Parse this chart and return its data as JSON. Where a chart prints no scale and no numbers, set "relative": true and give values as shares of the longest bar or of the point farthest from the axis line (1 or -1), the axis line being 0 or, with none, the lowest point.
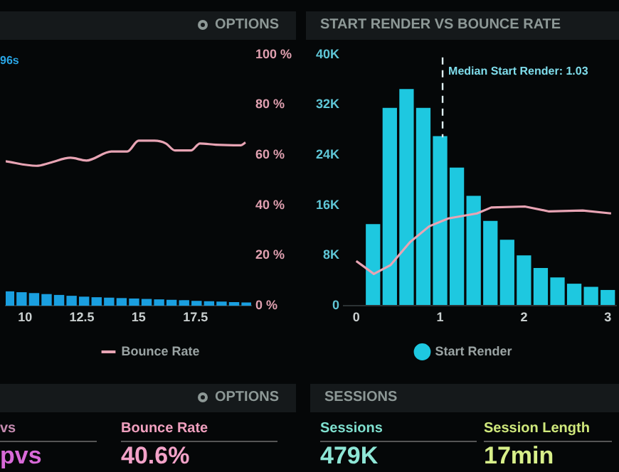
{
  "chart_data": [
    {
      "type": "bar",
      "relative": true,
      "x": [
        9.3,
        9.85,
        10.4,
        10.95,
        11.5,
        12.05,
        12.6,
        13.15,
        13.7,
        14.25,
        14.8,
        15.35,
        15.9,
        16.45,
        17.0,
        17.55,
        18.1,
        18.65,
        19.2,
        19.75
      ],
      "xlim": [
        9.15,
        19.95
      ],
      "xticks": [
        10,
        12.5,
        15,
        17.5
      ],
      "tick_labels": "x",
      "series": [
        {
          "type": "bar",
          "color": "#1a9fe0",
          "values": [
            1,
            0.94,
            0.88,
            0.81,
            0.75,
            0.69,
            0.63,
            0.59,
            0.56,
            0.53,
            0.5,
            0.47,
            0.44,
            0.41,
            0.38,
            0.34,
            0.31,
            0.28,
            0.25,
            0.22
          ]
        }
      ]
    },
    {
      "type": "line",
      "xlim": [
        9.15,
        19.95
      ],
      "xticks": [
        10,
        12.5,
        15,
        17.5
      ],
      "tick_labels": "y",
      "ylim": [
        0,
        100
      ],
      "yticks": [
        {
          "value": 0,
          "label": "0 %"
        },
        {
          "value": 20,
          "label": "20 %"
        },
        {
          "value": 40,
          "label": "40 %"
        },
        {
          "value": 60,
          "label": "60 %"
        },
        {
          "value": 80,
          "label": "80 %"
        },
        {
          "value": 100,
          "label": "100 %"
        }
      ],
      "legend": "bottom",
      "annotations": [
        "OPTIONS",
        "96s"
      ],
      "series": [
        {
          "name": "Bounce Rate",
          "color": "#e8a4b4",
          "x": [
            9.15,
            10.5,
            11.1,
            12.0,
            12.7,
            13.8,
            14.5,
            15.0,
            15.7,
            16.2,
            16.6,
            17.3,
            17.7,
            18.4,
            19.5,
            19.7
          ],
          "values": [
            57.5,
            55.7,
            56.9,
            58.9,
            57.8,
            61.4,
            61.4,
            65.7,
            65.7,
            64.6,
            61.8,
            61.8,
            64.6,
            64.1,
            63.9,
            65
          ]
        }
      ]
    },
    {
      "type": "histogram",
      "title": "START RENDER VS BOUNCE RATE",
      "bins": [
        0.1,
        0.3,
        0.5,
        0.7,
        0.9,
        1.1,
        1.3,
        1.5,
        1.7,
        1.9,
        2.1,
        2.3,
        2.5,
        2.7,
        2.9,
        3.1
      ],
      "xlim": [
        -0.15,
        3.1
      ],
      "xticks": [
        0,
        1,
        2,
        3
      ],
      "ylim": [
        0,
        40000
      ],
      "yticks": [
        0,
        {
          "value": 8000,
          "label": "8K"
        },
        {
          "value": 16000,
          "label": "16K"
        },
        {
          "value": 24000,
          "label": "24K"
        },
        {
          "value": 32000,
          "label": "32K"
        },
        {
          "value": 40000,
          "label": "40K"
        }
      ],
      "legend": "bottom",
      "tick_labels": "y",
      "ref_lines": [
        {
          "axis": "x",
          "value": 1.03,
          "label": "Median Start Render: 1.03",
          "line_style": "dashed",
          "color": "#dfeff2"
        }
      ],
      "series": [
        {
          "type": "histogram",
          "name": "Start Render",
          "color": "#1ec8e0",
          "values": [
            13000,
            31500,
            34500,
            31500,
            27000,
            22000,
            17500,
            13500,
            10500,
            8000,
            6000,
            4500,
            3500,
            3000,
            2500
          ]
        }
      ]
    },
    {
      "type": "line",
      "relative": true,
      "xlim": [
        -0.15,
        3.1
      ],
      "xticks": [
        0,
        1,
        2,
        3
      ],
      "tick_labels": "x",
      "series": [
        {
          "color": "#e8a4b4",
          "x": [
            0,
            0.21,
            0.41,
            0.64,
            0.87,
            1.1,
            1.44,
            1.61,
            2.01,
            2.3,
            2.7,
            3.04
          ],
          "values": [
            0.45,
            0.32,
            0.41,
            0.64,
            0.8,
            0.88,
            0.93,
            0.99,
            1,
            0.95,
            0.96,
            0.93
          ]
        }
      ]
    },
    {
      "type": "other",
      "annotations": [
        "OPTIONS",
        "SESSIONS",
        "vs",
        "pvs",
        "Bounce Rate",
        "40.6%",
        "Sessions",
        "479K",
        "Session Length",
        "17min"
      ]
    }
  ]
}
